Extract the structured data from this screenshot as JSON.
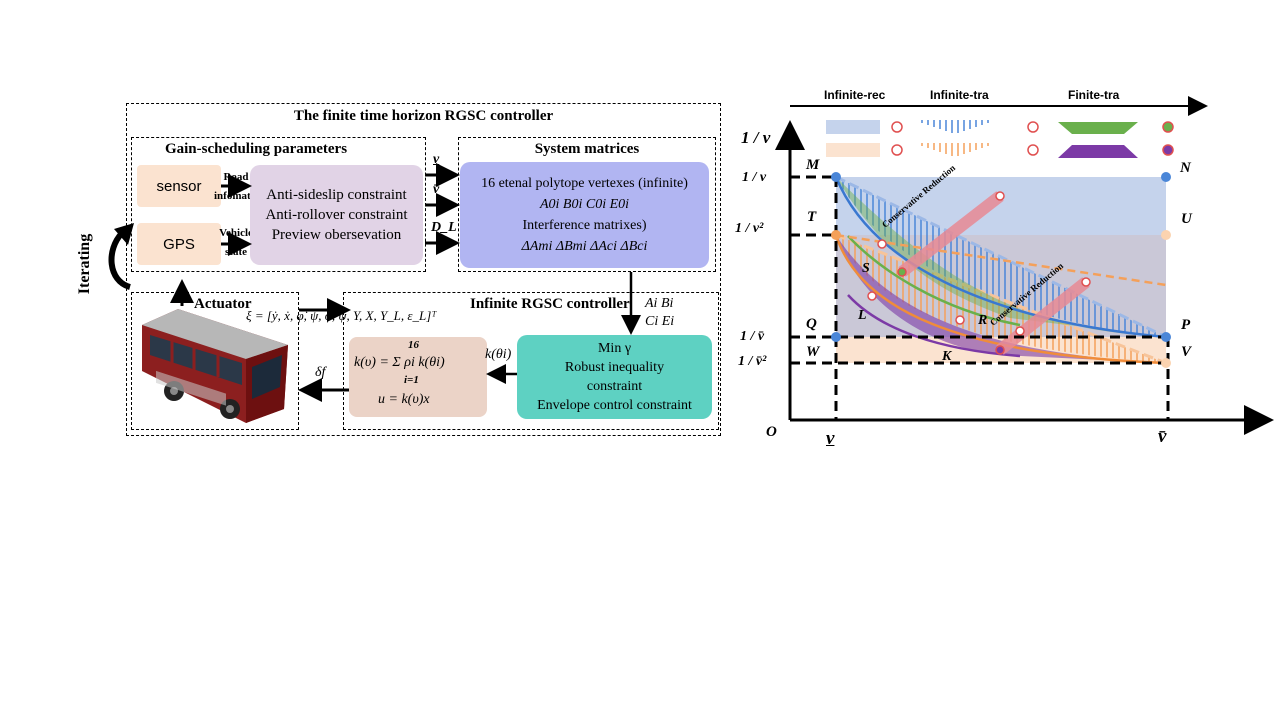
{
  "controller": {
    "title": "The finite time horizon RGSC controller",
    "iterating": "Iterating",
    "gain": {
      "title": "Gain-scheduling parameters",
      "sensor": "sensor",
      "gps": "GPS",
      "road_label_1": "Road",
      "road_label_2": "infomation",
      "vehicle_label_1": "Vehicle",
      "vehicle_label_2": "state",
      "constraints": [
        "Anti-sideslip constraint",
        "Anti-rollover constraint",
        "Preview obersevation"
      ],
      "outputs": [
        "v",
        "v̄",
        "D_L"
      ]
    },
    "system": {
      "title": "System matrices",
      "line1": "16 etenal polytope vertexes (infinite)",
      "line2": "A0i  B0i  C0i  E0i",
      "line3": "Interference matrixes)",
      "line4": "ΔAmi  ΔBmi  ΔAci  ΔBci"
    },
    "actuator": {
      "title": "Actuator",
      "state_vector": "ξ = [ẏ, ẋ, φ̇, ψ, φ, ψ, Y, X, Y_L, ε_L]ᵀ",
      "delta": "δf"
    },
    "infinite": {
      "title": "Infinite RGSC controller",
      "matrices_1": "Ai  Bi",
      "matrices_2": "Ci  Ei",
      "formula_1": "k(υ) = Σ ρi k(θi)",
      "sum_top": "16",
      "sum_bottom": "i=1",
      "formula_2": "u = k(υ)x",
      "k_theta": "k(θi)",
      "opt": [
        "Min γ",
        "Robust inequality",
        "constraint",
        "Envelope control constraint"
      ]
    }
  },
  "plot": {
    "header_labels": [
      "Infinite-rec",
      "Infinite-tra",
      "Finite-tra"
    ],
    "y_axis_label": "1 / v",
    "origin": "O",
    "y_ticks": [
      "1 / v",
      "1 / v²",
      "1 / v̄",
      "1 / v̄²"
    ],
    "x_ticks": [
      "v",
      "v̄"
    ],
    "points": [
      "M",
      "N",
      "T",
      "U",
      "Q",
      "P",
      "W",
      "V",
      "S",
      "L",
      "R",
      "K"
    ],
    "annotations": [
      "Conservative Reduction",
      "Conservative Reduction"
    ],
    "colors": {
      "blue_fill": "#c5d3ec",
      "orange_fill": "#fbe3d0",
      "blue_line": "#4a86d8",
      "orange_line": "#f4a05a",
      "green": "#6ab04c",
      "purple": "#7c3aa6",
      "red_band": "#e88a95"
    }
  }
}
